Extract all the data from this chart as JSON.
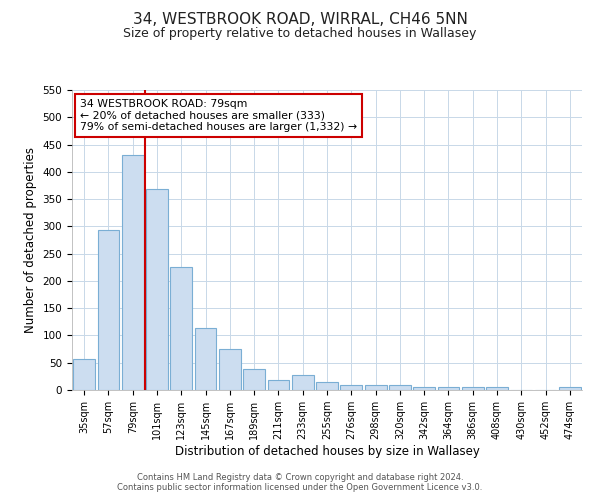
{
  "title": "34, WESTBROOK ROAD, WIRRAL, CH46 5NN",
  "subtitle": "Size of property relative to detached houses in Wallasey",
  "xlabel": "Distribution of detached houses by size in Wallasey",
  "ylabel": "Number of detached properties",
  "bar_labels": [
    "35sqm",
    "57sqm",
    "79sqm",
    "101sqm",
    "123sqm",
    "145sqm",
    "167sqm",
    "189sqm",
    "211sqm",
    "233sqm",
    "255sqm",
    "276sqm",
    "298sqm",
    "320sqm",
    "342sqm",
    "364sqm",
    "386sqm",
    "408sqm",
    "430sqm",
    "452sqm",
    "474sqm"
  ],
  "bar_values": [
    57,
    293,
    430,
    368,
    226,
    113,
    76,
    38,
    18,
    28,
    15,
    10,
    10,
    10,
    6,
    5,
    5,
    5,
    0,
    0,
    5
  ],
  "bar_color": "#ccddf0",
  "bar_edge_color": "#7aaed4",
  "vline_color": "#cc0000",
  "ylim": [
    0,
    550
  ],
  "yticks": [
    0,
    50,
    100,
    150,
    200,
    250,
    300,
    350,
    400,
    450,
    500,
    550
  ],
  "annotation_title": "34 WESTBROOK ROAD: 79sqm",
  "annotation_line1": "← 20% of detached houses are smaller (333)",
  "annotation_line2": "79% of semi-detached houses are larger (1,332) →",
  "annotation_box_color": "#ffffff",
  "annotation_box_edge": "#cc0000",
  "footer1": "Contains HM Land Registry data © Crown copyright and database right 2024.",
  "footer2": "Contains public sector information licensed under the Open Government Licence v3.0.",
  "background_color": "#ffffff",
  "grid_color": "#c8d8e8",
  "title_fontsize": 11,
  "subtitle_fontsize": 9
}
